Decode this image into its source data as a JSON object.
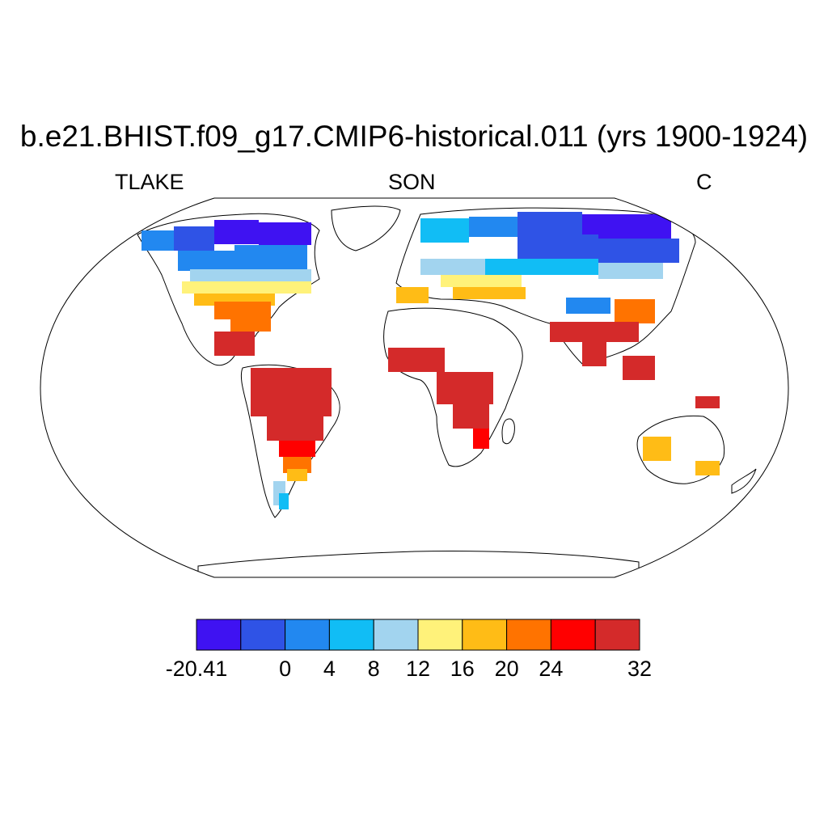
{
  "title": "b.e21.BHIST.f09_g17.CMIP6-historical.011 (yrs 1900-1924)",
  "variable": "TLAKE",
  "season": "SON",
  "units": "C",
  "colorbar": {
    "colors": [
      "#3f12f2",
      "#2f53e6",
      "#2288f0",
      "#11bdf5",
      "#a2d4ef",
      "#fff27a",
      "#ffbc16",
      "#ff7300",
      "#ff0000",
      "#d42a2a"
    ],
    "labels": [
      {
        "text": "-20.41",
        "boundary": 0
      },
      {
        "text": "0",
        "boundary": 2
      },
      {
        "text": "4",
        "boundary": 3
      },
      {
        "text": "8",
        "boundary": 4
      },
      {
        "text": "12",
        "boundary": 5
      },
      {
        "text": "16",
        "boundary": 6
      },
      {
        "text": "20",
        "boundary": 7
      },
      {
        "text": "24",
        "boundary": 8
      },
      {
        "text": "32",
        "boundary": 10
      }
    ]
  }
}
